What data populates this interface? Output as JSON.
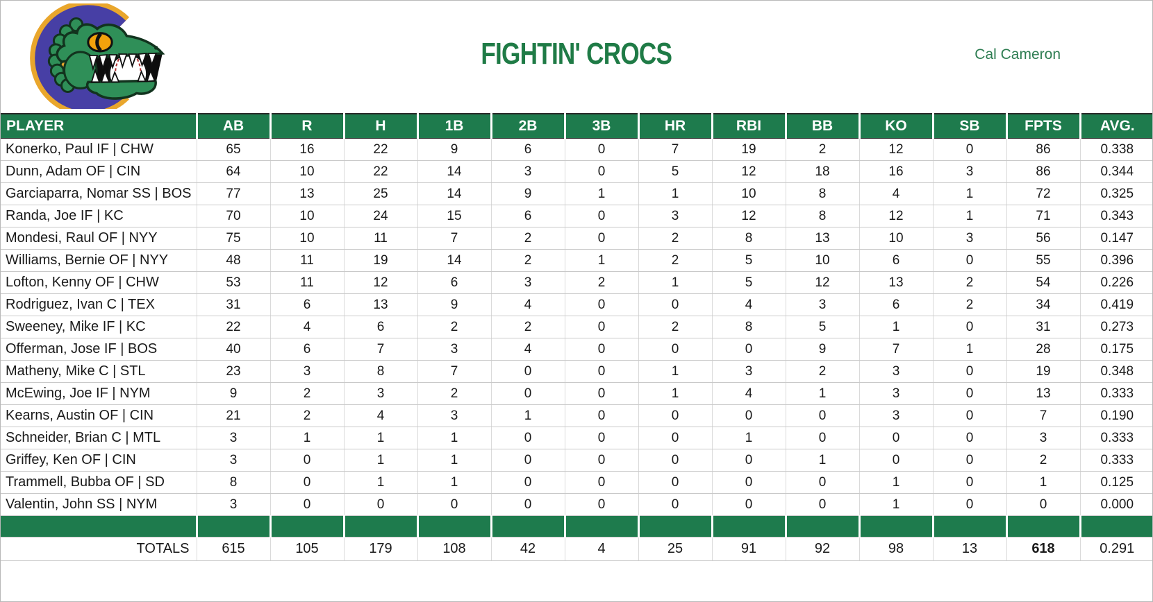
{
  "page": {
    "title": "FIGHTIN' CROCS",
    "owner": "Cal Cameron"
  },
  "logo": {
    "name": "fightin-crocs-logo",
    "letter": "C",
    "colors": {
      "green": "#2F8F58",
      "purple": "#473FA5",
      "gold": "#E9A62C",
      "eye": "#F2A20C"
    }
  },
  "colors": {
    "header_green": "#1E7B4D",
    "title_green": "#1F7B46"
  },
  "table": {
    "columns": [
      "PLAYER",
      "AB",
      "R",
      "H",
      "1B",
      "2B",
      "3B",
      "HR",
      "RBI",
      "BB",
      "KO",
      "SB",
      "FPTS",
      "AVG."
    ],
    "rows": [
      {
        "player": "Konerko, Paul IF | CHW",
        "values": [
          "65",
          "16",
          "22",
          "9",
          "6",
          "0",
          "7",
          "19",
          "2",
          "12",
          "0",
          "86",
          "0.338"
        ]
      },
      {
        "player": "Dunn, Adam OF | CIN",
        "values": [
          "64",
          "10",
          "22",
          "14",
          "3",
          "0",
          "5",
          "12",
          "18",
          "16",
          "3",
          "86",
          "0.344"
        ]
      },
      {
        "player": "Garciaparra, Nomar SS | BOS",
        "values": [
          "77",
          "13",
          "25",
          "14",
          "9",
          "1",
          "1",
          "10",
          "8",
          "4",
          "1",
          "72",
          "0.325"
        ]
      },
      {
        "player": "Randa, Joe IF | KC",
        "values": [
          "70",
          "10",
          "24",
          "15",
          "6",
          "0",
          "3",
          "12",
          "8",
          "12",
          "1",
          "71",
          "0.343"
        ]
      },
      {
        "player": "Mondesi, Raul OF | NYY",
        "values": [
          "75",
          "10",
          "11",
          "7",
          "2",
          "0",
          "2",
          "8",
          "13",
          "10",
          "3",
          "56",
          "0.147"
        ]
      },
      {
        "player": "Williams, Bernie OF | NYY",
        "values": [
          "48",
          "11",
          "19",
          "14",
          "2",
          "1",
          "2",
          "5",
          "10",
          "6",
          "0",
          "55",
          "0.396"
        ]
      },
      {
        "player": "Lofton, Kenny OF | CHW",
        "values": [
          "53",
          "11",
          "12",
          "6",
          "3",
          "2",
          "1",
          "5",
          "12",
          "13",
          "2",
          "54",
          "0.226"
        ]
      },
      {
        "player": "Rodriguez, Ivan C | TEX",
        "values": [
          "31",
          "6",
          "13",
          "9",
          "4",
          "0",
          "0",
          "4",
          "3",
          "6",
          "2",
          "34",
          "0.419"
        ]
      },
      {
        "player": "Sweeney, Mike IF | KC",
        "values": [
          "22",
          "4",
          "6",
          "2",
          "2",
          "0",
          "2",
          "8",
          "5",
          "1",
          "0",
          "31",
          "0.273"
        ]
      },
      {
        "player": "Offerman, Jose IF | BOS",
        "values": [
          "40",
          "6",
          "7",
          "3",
          "4",
          "0",
          "0",
          "0",
          "9",
          "7",
          "1",
          "28",
          "0.175"
        ]
      },
      {
        "player": "Matheny, Mike C | STL",
        "values": [
          "23",
          "3",
          "8",
          "7",
          "0",
          "0",
          "1",
          "3",
          "2",
          "3",
          "0",
          "19",
          "0.348"
        ]
      },
      {
        "player": "McEwing, Joe IF | NYM",
        "values": [
          "9",
          "2",
          "3",
          "2",
          "0",
          "0",
          "1",
          "4",
          "1",
          "3",
          "0",
          "13",
          "0.333"
        ]
      },
      {
        "player": "Kearns, Austin OF | CIN",
        "values": [
          "21",
          "2",
          "4",
          "3",
          "1",
          "0",
          "0",
          "0",
          "0",
          "3",
          "0",
          "7",
          "0.190"
        ]
      },
      {
        "player": "Schneider, Brian C | MTL",
        "values": [
          "3",
          "1",
          "1",
          "1",
          "0",
          "0",
          "0",
          "1",
          "0",
          "0",
          "0",
          "3",
          "0.333"
        ]
      },
      {
        "player": "Griffey, Ken OF | CIN",
        "values": [
          "3",
          "0",
          "1",
          "1",
          "0",
          "0",
          "0",
          "0",
          "1",
          "0",
          "0",
          "2",
          "0.333"
        ]
      },
      {
        "player": "Trammell, Bubba OF | SD",
        "values": [
          "8",
          "0",
          "1",
          "1",
          "0",
          "0",
          "0",
          "0",
          "0",
          "1",
          "0",
          "1",
          "0.125"
        ]
      },
      {
        "player": "Valentin, John SS | NYM",
        "values": [
          "3",
          "0",
          "0",
          "0",
          "0",
          "0",
          "0",
          "0",
          "0",
          "1",
          "0",
          "0",
          "0.000"
        ]
      }
    ],
    "totals": {
      "label": "TOTALS",
      "values": [
        "615",
        "105",
        "179",
        "108",
        "42",
        "4",
        "25",
        "91",
        "92",
        "98",
        "13",
        "618",
        "0.291"
      ],
      "bold_value_index": 11
    }
  }
}
